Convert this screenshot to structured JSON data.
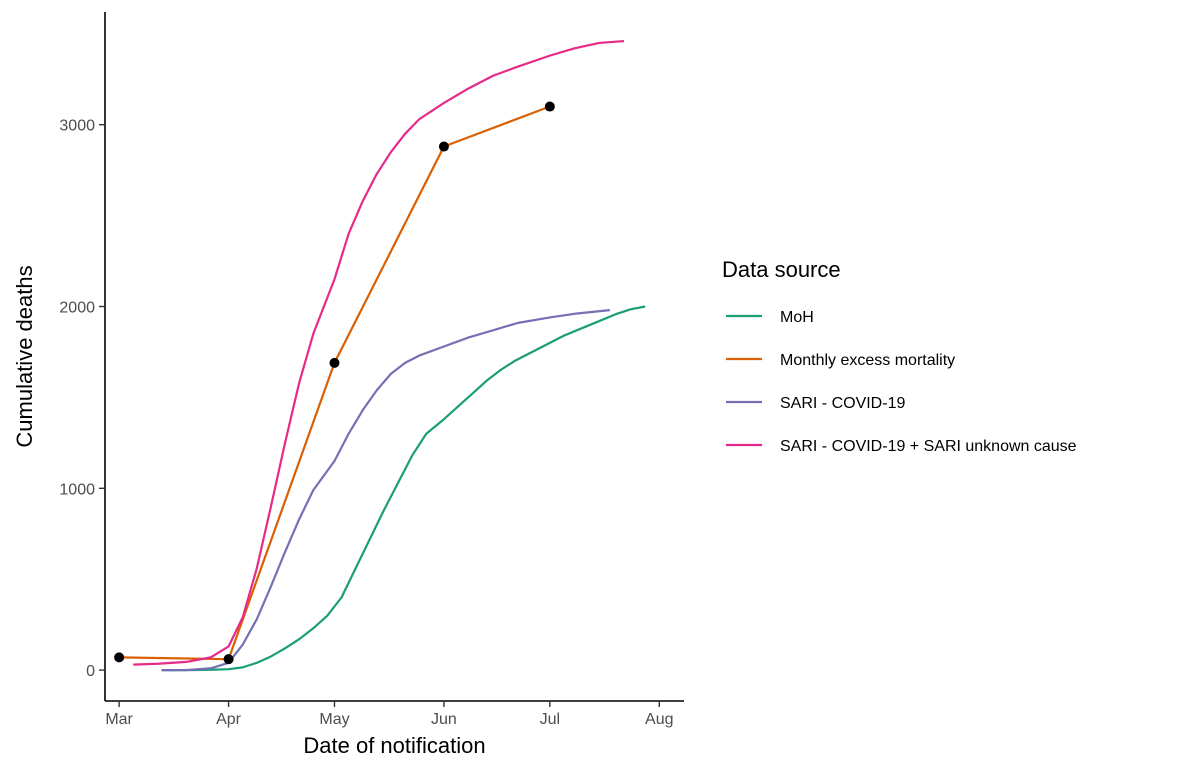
{
  "chart_data": {
    "type": "line",
    "title": "",
    "xlabel": "Date of notification",
    "ylabel": "Cumulative deaths",
    "x_axis": {
      "type": "date",
      "range": [
        "2020-02-26",
        "2020-08-08"
      ],
      "ticks": [
        {
          "date": "2020-03-01",
          "label": "Mar"
        },
        {
          "date": "2020-04-01",
          "label": "Apr"
        },
        {
          "date": "2020-05-01",
          "label": "May"
        },
        {
          "date": "2020-06-01",
          "label": "Jun"
        },
        {
          "date": "2020-07-01",
          "label": "Jul"
        },
        {
          "date": "2020-08-01",
          "label": "Aug"
        }
      ]
    },
    "y_axis": {
      "range": [
        -170,
        3620
      ],
      "ticks": [
        0,
        1000,
        2000,
        3000
      ]
    },
    "grid": false,
    "legend": {
      "title": "Data source",
      "position": "right"
    },
    "series": [
      {
        "name": "MoH",
        "color": "#1b9e77",
        "points": [
          [
            "2020-03-13",
            0
          ],
          [
            "2020-03-20",
            0
          ],
          [
            "2020-03-27",
            2
          ],
          [
            "2020-04-01",
            5
          ],
          [
            "2020-04-05",
            15
          ],
          [
            "2020-04-09",
            40
          ],
          [
            "2020-04-13",
            75
          ],
          [
            "2020-04-17",
            120
          ],
          [
            "2020-04-21",
            170
          ],
          [
            "2020-04-25",
            230
          ],
          [
            "2020-04-29",
            300
          ],
          [
            "2020-05-03",
            400
          ],
          [
            "2020-05-07",
            560
          ],
          [
            "2020-05-11",
            720
          ],
          [
            "2020-05-15",
            880
          ],
          [
            "2020-05-19",
            1030
          ],
          [
            "2020-05-23",
            1180
          ],
          [
            "2020-05-27",
            1300
          ],
          [
            "2020-06-01",
            1380
          ],
          [
            "2020-06-05",
            1450
          ],
          [
            "2020-06-09",
            1520
          ],
          [
            "2020-06-13",
            1590
          ],
          [
            "2020-06-17",
            1650
          ],
          [
            "2020-06-21",
            1700
          ],
          [
            "2020-06-25",
            1740
          ],
          [
            "2020-07-01",
            1800
          ],
          [
            "2020-07-05",
            1840
          ],
          [
            "2020-07-10",
            1880
          ],
          [
            "2020-07-15",
            1920
          ],
          [
            "2020-07-20",
            1960
          ],
          [
            "2020-07-24",
            1985
          ],
          [
            "2020-07-28",
            2000
          ]
        ]
      },
      {
        "name": "Monthly excess mortality",
        "color": "#d95f02",
        "show_points": true,
        "points": [
          [
            "2020-03-01",
            70
          ],
          [
            "2020-04-01",
            60
          ],
          [
            "2020-05-01",
            1690
          ],
          [
            "2020-06-01",
            2880
          ],
          [
            "2020-07-01",
            3100
          ]
        ]
      },
      {
        "name": "SARI - COVID-19",
        "color": "#7570b3",
        "points": [
          [
            "2020-03-13",
            0
          ],
          [
            "2020-03-20",
            0
          ],
          [
            "2020-03-27",
            10
          ],
          [
            "2020-04-01",
            40
          ],
          [
            "2020-04-05",
            140
          ],
          [
            "2020-04-09",
            280
          ],
          [
            "2020-04-13",
            460
          ],
          [
            "2020-04-17",
            650
          ],
          [
            "2020-04-21",
            830
          ],
          [
            "2020-04-25",
            990
          ],
          [
            "2020-05-01",
            1150
          ],
          [
            "2020-05-05",
            1300
          ],
          [
            "2020-05-09",
            1430
          ],
          [
            "2020-05-13",
            1540
          ],
          [
            "2020-05-17",
            1630
          ],
          [
            "2020-05-21",
            1690
          ],
          [
            "2020-05-25",
            1730
          ],
          [
            "2020-06-01",
            1780
          ],
          [
            "2020-06-08",
            1830
          ],
          [
            "2020-06-15",
            1870
          ],
          [
            "2020-06-22",
            1910
          ],
          [
            "2020-07-01",
            1940
          ],
          [
            "2020-07-08",
            1960
          ],
          [
            "2020-07-18",
            1980
          ]
        ]
      },
      {
        "name": "SARI - COVID-19 + SARI unknown cause",
        "color": "#e7298a",
        "points": [
          [
            "2020-03-05",
            30
          ],
          [
            "2020-03-12",
            35
          ],
          [
            "2020-03-20",
            45
          ],
          [
            "2020-03-27",
            70
          ],
          [
            "2020-04-01",
            130
          ],
          [
            "2020-04-05",
            290
          ],
          [
            "2020-04-09",
            560
          ],
          [
            "2020-04-13",
            900
          ],
          [
            "2020-04-17",
            1250
          ],
          [
            "2020-04-21",
            1580
          ],
          [
            "2020-04-25",
            1850
          ],
          [
            "2020-05-01",
            2150
          ],
          [
            "2020-05-05",
            2400
          ],
          [
            "2020-05-09",
            2580
          ],
          [
            "2020-05-13",
            2730
          ],
          [
            "2020-05-17",
            2850
          ],
          [
            "2020-05-21",
            2950
          ],
          [
            "2020-05-25",
            3030
          ],
          [
            "2020-06-01",
            3120
          ],
          [
            "2020-06-08",
            3200
          ],
          [
            "2020-06-15",
            3270
          ],
          [
            "2020-06-22",
            3320
          ],
          [
            "2020-07-01",
            3380
          ],
          [
            "2020-07-08",
            3420
          ],
          [
            "2020-07-15",
            3450
          ],
          [
            "2020-07-22",
            3460
          ]
        ]
      }
    ]
  }
}
